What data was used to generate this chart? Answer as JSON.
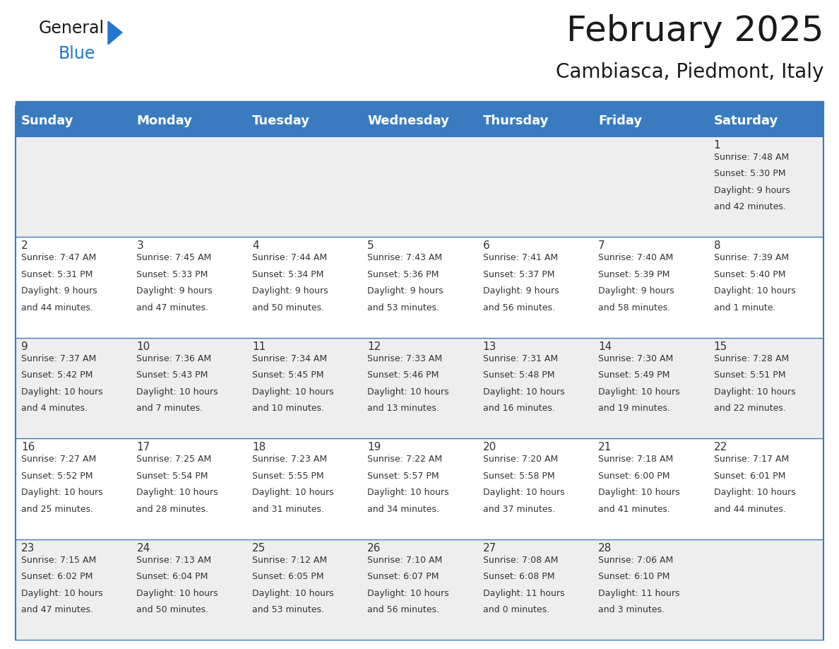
{
  "title": "February 2025",
  "subtitle": "Cambiasca, Piedmont, Italy",
  "header_bg": "#3a7bbf",
  "header_text_color": "#ffffff",
  "cell_bg_light": "#eeeeee",
  "cell_bg_white": "#ffffff",
  "border_color": "#3a7bbf",
  "day_names": [
    "Sunday",
    "Monday",
    "Tuesday",
    "Wednesday",
    "Thursday",
    "Friday",
    "Saturday"
  ],
  "days": [
    {
      "day": 1,
      "col": 6,
      "row": 0,
      "sunrise": "7:48 AM",
      "sunset": "5:30 PM",
      "daylight": "9 hours and 42 minutes"
    },
    {
      "day": 2,
      "col": 0,
      "row": 1,
      "sunrise": "7:47 AM",
      "sunset": "5:31 PM",
      "daylight": "9 hours and 44 minutes"
    },
    {
      "day": 3,
      "col": 1,
      "row": 1,
      "sunrise": "7:45 AM",
      "sunset": "5:33 PM",
      "daylight": "9 hours and 47 minutes"
    },
    {
      "day": 4,
      "col": 2,
      "row": 1,
      "sunrise": "7:44 AM",
      "sunset": "5:34 PM",
      "daylight": "9 hours and 50 minutes"
    },
    {
      "day": 5,
      "col": 3,
      "row": 1,
      "sunrise": "7:43 AM",
      "sunset": "5:36 PM",
      "daylight": "9 hours and 53 minutes"
    },
    {
      "day": 6,
      "col": 4,
      "row": 1,
      "sunrise": "7:41 AM",
      "sunset": "5:37 PM",
      "daylight": "9 hours and 56 minutes"
    },
    {
      "day": 7,
      "col": 5,
      "row": 1,
      "sunrise": "7:40 AM",
      "sunset": "5:39 PM",
      "daylight": "9 hours and 58 minutes"
    },
    {
      "day": 8,
      "col": 6,
      "row": 1,
      "sunrise": "7:39 AM",
      "sunset": "5:40 PM",
      "daylight": "10 hours and 1 minute"
    },
    {
      "day": 9,
      "col": 0,
      "row": 2,
      "sunrise": "7:37 AM",
      "sunset": "5:42 PM",
      "daylight": "10 hours and 4 minutes"
    },
    {
      "day": 10,
      "col": 1,
      "row": 2,
      "sunrise": "7:36 AM",
      "sunset": "5:43 PM",
      "daylight": "10 hours and 7 minutes"
    },
    {
      "day": 11,
      "col": 2,
      "row": 2,
      "sunrise": "7:34 AM",
      "sunset": "5:45 PM",
      "daylight": "10 hours and 10 minutes"
    },
    {
      "day": 12,
      "col": 3,
      "row": 2,
      "sunrise": "7:33 AM",
      "sunset": "5:46 PM",
      "daylight": "10 hours and 13 minutes"
    },
    {
      "day": 13,
      "col": 4,
      "row": 2,
      "sunrise": "7:31 AM",
      "sunset": "5:48 PM",
      "daylight": "10 hours and 16 minutes"
    },
    {
      "day": 14,
      "col": 5,
      "row": 2,
      "sunrise": "7:30 AM",
      "sunset": "5:49 PM",
      "daylight": "10 hours and 19 minutes"
    },
    {
      "day": 15,
      "col": 6,
      "row": 2,
      "sunrise": "7:28 AM",
      "sunset": "5:51 PM",
      "daylight": "10 hours and 22 minutes"
    },
    {
      "day": 16,
      "col": 0,
      "row": 3,
      "sunrise": "7:27 AM",
      "sunset": "5:52 PM",
      "daylight": "10 hours and 25 minutes"
    },
    {
      "day": 17,
      "col": 1,
      "row": 3,
      "sunrise": "7:25 AM",
      "sunset": "5:54 PM",
      "daylight": "10 hours and 28 minutes"
    },
    {
      "day": 18,
      "col": 2,
      "row": 3,
      "sunrise": "7:23 AM",
      "sunset": "5:55 PM",
      "daylight": "10 hours and 31 minutes"
    },
    {
      "day": 19,
      "col": 3,
      "row": 3,
      "sunrise": "7:22 AM",
      "sunset": "5:57 PM",
      "daylight": "10 hours and 34 minutes"
    },
    {
      "day": 20,
      "col": 4,
      "row": 3,
      "sunrise": "7:20 AM",
      "sunset": "5:58 PM",
      "daylight": "10 hours and 37 minutes"
    },
    {
      "day": 21,
      "col": 5,
      "row": 3,
      "sunrise": "7:18 AM",
      "sunset": "6:00 PM",
      "daylight": "10 hours and 41 minutes"
    },
    {
      "day": 22,
      "col": 6,
      "row": 3,
      "sunrise": "7:17 AM",
      "sunset": "6:01 PM",
      "daylight": "10 hours and 44 minutes"
    },
    {
      "day": 23,
      "col": 0,
      "row": 4,
      "sunrise": "7:15 AM",
      "sunset": "6:02 PM",
      "daylight": "10 hours and 47 minutes"
    },
    {
      "day": 24,
      "col": 1,
      "row": 4,
      "sunrise": "7:13 AM",
      "sunset": "6:04 PM",
      "daylight": "10 hours and 50 minutes"
    },
    {
      "day": 25,
      "col": 2,
      "row": 4,
      "sunrise": "7:12 AM",
      "sunset": "6:05 PM",
      "daylight": "10 hours and 53 minutes"
    },
    {
      "day": 26,
      "col": 3,
      "row": 4,
      "sunrise": "7:10 AM",
      "sunset": "6:07 PM",
      "daylight": "10 hours and 56 minutes"
    },
    {
      "day": 27,
      "col": 4,
      "row": 4,
      "sunrise": "7:08 AM",
      "sunset": "6:08 PM",
      "daylight": "11 hours and 0 minutes"
    },
    {
      "day": 28,
      "col": 5,
      "row": 4,
      "sunrise": "7:06 AM",
      "sunset": "6:10 PM",
      "daylight": "11 hours and 3 minutes"
    }
  ],
  "num_rows": 5,
  "logo_color_general": "#1a1a1a",
  "logo_color_blue": "#2277cc",
  "logo_triangle_color": "#2277cc",
  "title_fontsize": 36,
  "subtitle_fontsize": 20,
  "header_fontsize": 13,
  "day_num_fontsize": 11,
  "info_fontsize": 9,
  "background_color": "#ffffff",
  "text_color": "#333333"
}
